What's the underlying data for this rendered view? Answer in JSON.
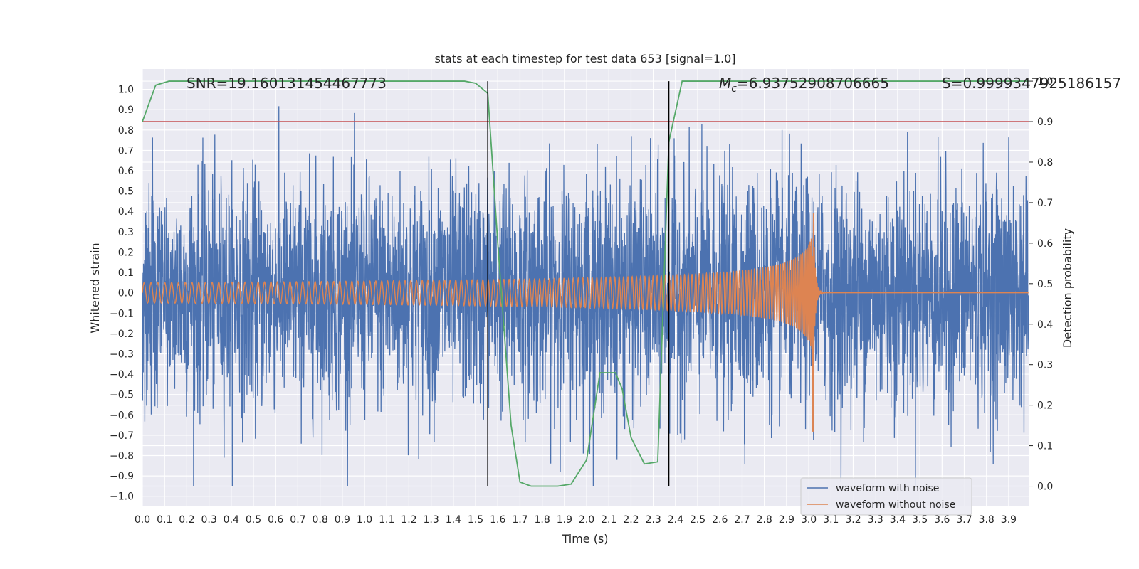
{
  "chart_data": {
    "type": "line",
    "title": "stats at each timestep for test data 653 [signal=1.0]",
    "xlabel": "Time (s)",
    "ylabel": "Whitened strain",
    "y2label": "Detection probability",
    "xlim": [
      0.0,
      3.99
    ],
    "ylim": [
      -1.05,
      1.1
    ],
    "y2lim": [
      -0.05,
      1.03
    ],
    "xticks": [
      "0.0",
      "0.1",
      "0.2",
      "0.3",
      "0.4",
      "0.5",
      "0.6",
      "0.7",
      "0.8",
      "0.9",
      "1.0",
      "1.1",
      "1.2",
      "1.3",
      "1.4",
      "1.5",
      "1.6",
      "1.7",
      "1.8",
      "1.9",
      "2.0",
      "2.1",
      "2.2",
      "2.3",
      "2.4",
      "2.5",
      "2.6",
      "2.7",
      "2.8",
      "2.9",
      "3.0",
      "3.1",
      "3.2",
      "3.3",
      "3.4",
      "3.5",
      "3.6",
      "3.7",
      "3.8",
      "3.9"
    ],
    "yticks": [
      "1.0",
      "0.9",
      "0.8",
      "0.7",
      "0.6",
      "0.5",
      "0.4",
      "0.3",
      "0.2",
      "0.1",
      "0.0",
      "−0.1",
      "−0.2",
      "−0.3",
      "−0.4",
      "−0.5",
      "−0.6",
      "−0.7",
      "−0.8",
      "−0.9",
      "−1.0"
    ],
    "y2ticks": [
      "1.0",
      "0.9",
      "0.8",
      "0.7",
      "0.6",
      "0.5",
      "0.4",
      "0.3",
      "0.2",
      "0.1",
      "0.0"
    ],
    "grid": true,
    "legend_position": "bottom-right",
    "annotations": {
      "snr": "SNR=19.160131454467773",
      "mc_symbol": "M",
      "mc_sub": "c",
      "mc_value": "=6.93752908706665",
      "s": "S=0.9999347925186157"
    },
    "threshold": {
      "axis": "y2",
      "value": 0.9,
      "color": "#c44e52"
    },
    "vlines": {
      "x": [
        1.555,
        2.37
      ],
      "color": "#000000"
    },
    "series": [
      {
        "name": "waveform with noise",
        "color": "#4c72b0",
        "axis": "y",
        "kind": "noise",
        "description_values": {
          "approx_std": 0.28,
          "min": -0.95,
          "max": 1.0,
          "duration_s": 4.0
        }
      },
      {
        "name": "waveform without noise",
        "color": "#dd8452",
        "axis": "y",
        "kind": "chirp",
        "chirp": {
          "start_amp": 0.05,
          "peak_time": 3.02,
          "peak_amp": 0.45,
          "min_amp": -0.68,
          "start_freq_hz": 32,
          "end_freq_hz": 240
        }
      },
      {
        "name": "",
        "color": "#55a868",
        "axis": "y2",
        "x": [
          0.0,
          0.06,
          0.12,
          0.2,
          0.4,
          0.8,
          1.2,
          1.45,
          1.5,
          1.555,
          1.6,
          1.66,
          1.7,
          1.75,
          1.87,
          1.93,
          2.0,
          2.06,
          2.13,
          2.16,
          2.2,
          2.26,
          2.32,
          2.37,
          2.43,
          2.5,
          3.0,
          3.5,
          3.99
        ],
        "values": [
          0.9,
          0.99,
          1.0,
          1.0,
          1.0,
          1.0,
          1.0,
          1.0,
          0.995,
          0.97,
          0.6,
          0.15,
          0.01,
          0.0,
          0.0,
          0.005,
          0.065,
          0.28,
          0.28,
          0.24,
          0.12,
          0.055,
          0.06,
          0.85,
          1.0,
          1.0,
          1.0,
          1.0,
          1.0
        ]
      }
    ]
  }
}
